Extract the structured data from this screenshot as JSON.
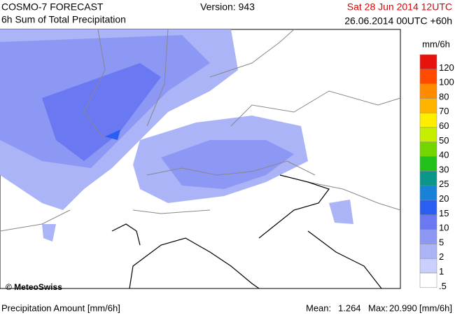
{
  "header": {
    "model": "COSMO-7 FORECAST",
    "product": "6h Sum of Total Precipitation",
    "version": "Version: 943",
    "valid_time": "Sat 28 Jun 2014 12UTC",
    "run": "26.06.2014 00UTC +60h"
  },
  "legend": {
    "unit": "mm/6h",
    "items": [
      {
        "label": "120",
        "color": "#e8120c"
      },
      {
        "label": "100",
        "color": "#ff4a00"
      },
      {
        "label": "80",
        "color": "#ff8a00"
      },
      {
        "label": "70",
        "color": "#ffb400"
      },
      {
        "label": "60",
        "color": "#ffee00"
      },
      {
        "label": "50",
        "color": "#c6ef00"
      },
      {
        "label": "40",
        "color": "#74d600"
      },
      {
        "label": "30",
        "color": "#22c21a"
      },
      {
        "label": "25",
        "color": "#0a9688"
      },
      {
        "label": "20",
        "color": "#1a82d6"
      },
      {
        "label": "15",
        "color": "#2a5ef0"
      },
      {
        "label": "10",
        "color": "#6a78f2"
      },
      {
        "label": "5",
        "color": "#8c98f4"
      },
      {
        "label": "2",
        "color": "#aab4f7"
      },
      {
        "label": "1",
        "color": "#cad0fb"
      },
      {
        "label": ".5",
        "color": "#ffffff"
      }
    ]
  },
  "map": {
    "credit": "© MeteoSwiss"
  },
  "footer": {
    "left": "Precipitation Amount [mm/6h]",
    "mean_label": "Mean:",
    "mean": "1.264",
    "max_label": "Max:",
    "max": "20.990",
    "unit": "[mm/6h]"
  }
}
